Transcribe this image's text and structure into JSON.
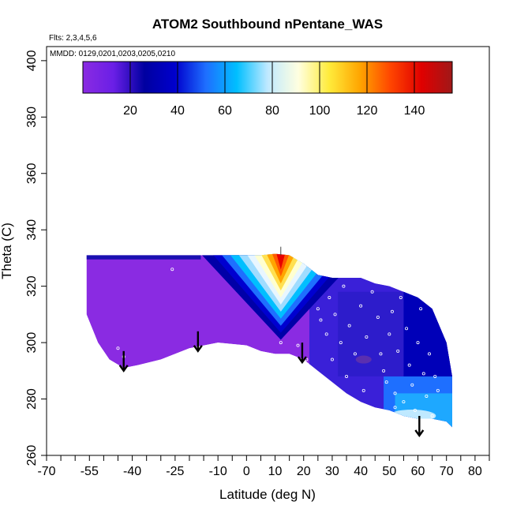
{
  "chart_data": {
    "type": "heatmap",
    "title": "ATOM2 Southbound nPentane_WAS",
    "flights_label": "Flts: 2,3,4,5,6",
    "dates_label": "MMDD: 0129,0201,0203,0205,0210",
    "xlabel": "Latitude (deg N)",
    "ylabel": "Theta (C)",
    "xlim": [
      -70,
      85
    ],
    "ylim": [
      260,
      405
    ],
    "x_ticks": [
      -70,
      -55,
      -40,
      -25,
      -10,
      0,
      10,
      20,
      30,
      40,
      50,
      60,
      70,
      80
    ],
    "x_tick_labels": [
      "-70",
      "-55",
      "-40",
      "-25",
      "-10",
      "0",
      "10",
      "20",
      "30",
      "40",
      "50",
      "60",
      "70",
      "80"
    ],
    "x_minor_ticks": [
      -65,
      -60,
      -50,
      -45,
      -35,
      -30,
      -20,
      -15,
      -5,
      5,
      15,
      25,
      35,
      45,
      55,
      65,
      75,
      85
    ],
    "y_ticks": [
      260,
      280,
      300,
      320,
      340,
      360,
      380,
      400
    ],
    "y_tick_labels": [
      "260",
      "280",
      "300",
      "320",
      "340",
      "360",
      "380",
      "400"
    ],
    "colorbar": {
      "range": [
        0,
        156
      ],
      "ticks": [
        20,
        40,
        60,
        80,
        100,
        120,
        140
      ],
      "tick_labels": [
        "20",
        "40",
        "60",
        "80",
        "100",
        "120",
        "140"
      ],
      "colors": [
        "#8a2be2",
        "#6a1fe6",
        "#0000a0",
        "#0000cd",
        "#1e6fff",
        "#00bfff",
        "#bfe9ff",
        "#ffffe0",
        "#ffeb3b",
        "#ffa500",
        "#ff4500",
        "#e00000",
        "#a01818"
      ]
    },
    "surface": {
      "latitudes": [
        -56,
        -52,
        -48,
        -43,
        -38,
        -30,
        -20,
        -10,
        0,
        5,
        10,
        15,
        20,
        25,
        30,
        35,
        40,
        45,
        50,
        55,
        60,
        65,
        70,
        72
      ],
      "top_theta": [
        331,
        331,
        331,
        331,
        331,
        331,
        331,
        331,
        331,
        331,
        331.5,
        331,
        328,
        324,
        323,
        323,
        323,
        321,
        320,
        318,
        316,
        312,
        300,
        288
      ],
      "bottom_theta": [
        310,
        300,
        294,
        291,
        292,
        294,
        298,
        300,
        299,
        297,
        296,
        296,
        294,
        290,
        286,
        282,
        279,
        277,
        276,
        274,
        273,
        273,
        272,
        270
      ],
      "v_center_latitude": 12,
      "v_half_width_top": 28,
      "v_bottom_theta": 301
    },
    "sample_points": [
      [
        -45,
        298
      ],
      [
        -43,
        295
      ],
      [
        -26,
        326
      ],
      [
        12,
        300
      ],
      [
        18,
        299
      ],
      [
        21,
        294
      ],
      [
        25,
        312
      ],
      [
        26,
        308
      ],
      [
        28,
        303
      ],
      [
        29,
        316
      ],
      [
        31,
        310
      ],
      [
        33,
        300
      ],
      [
        34,
        320
      ],
      [
        36,
        306
      ],
      [
        38,
        296
      ],
      [
        40,
        313
      ],
      [
        42,
        302
      ],
      [
        44,
        318
      ],
      [
        46,
        309
      ],
      [
        47,
        296
      ],
      [
        48,
        290
      ],
      [
        49,
        286
      ],
      [
        50,
        303
      ],
      [
        51,
        311
      ],
      [
        52,
        282
      ],
      [
        53,
        297
      ],
      [
        54,
        316
      ],
      [
        55,
        279
      ],
      [
        56,
        305
      ],
      [
        57,
        292
      ],
      [
        58,
        285
      ],
      [
        59,
        276
      ],
      [
        60,
        300
      ],
      [
        61,
        312
      ],
      [
        62,
        289
      ],
      [
        63,
        281
      ],
      [
        64,
        296
      ],
      [
        65,
        274
      ],
      [
        66,
        288
      ],
      [
        67,
        283
      ],
      [
        52,
        277
      ],
      [
        56,
        272
      ],
      [
        61,
        271
      ],
      [
        68,
        270
      ],
      [
        45,
        276
      ],
      [
        30,
        294
      ],
      [
        35,
        288
      ],
      [
        41,
        283
      ]
    ],
    "arrows": [
      {
        "lat": -43,
        "theta_from": 297,
        "theta_to": 290
      },
      {
        "lat": -17,
        "theta_from": 304,
        "theta_to": 297
      },
      {
        "lat": 19.5,
        "theta_from": 300,
        "theta_to": 293
      },
      {
        "lat": 60.5,
        "theta_from": 274,
        "theta_to": 267
      }
    ],
    "grid": false,
    "legend": "top colorbar"
  }
}
